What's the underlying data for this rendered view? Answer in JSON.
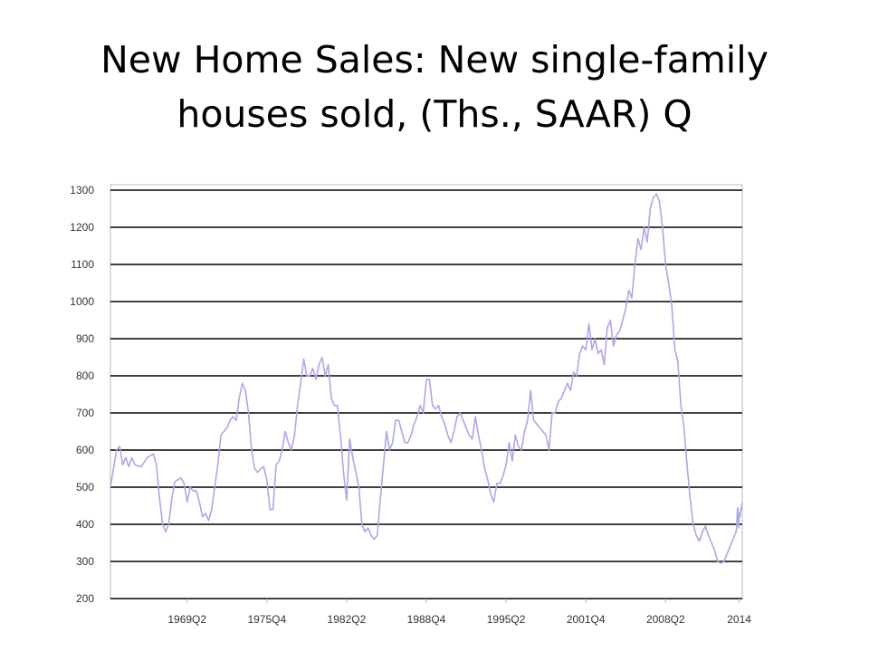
{
  "slide": {
    "title": "New Home Sales: New single-family houses sold, (Ths., SAAR)  Q"
  },
  "colors": {
    "series": "#a9a9e6",
    "grid": "#000000",
    "frame": "#bbbbbb",
    "text": "#333333"
  },
  "chart_data": {
    "type": "line",
    "title": "New Home Sales: New single-family houses sold, (Ths., SAAR)  Q",
    "xlabel": "",
    "ylabel": "",
    "ylim": [
      200,
      1300
    ],
    "xlim": [
      1963.0,
      2014.5
    ],
    "grid": true,
    "legend": "none",
    "yticks": [
      200,
      300,
      400,
      500,
      600,
      700,
      800,
      900,
      1000,
      1100,
      1200,
      1300
    ],
    "xtick_labels": [
      {
        "label": "1969Q2",
        "x": 1969.25
      },
      {
        "label": "1975Q4",
        "x": 1975.75
      },
      {
        "label": "1982Q2",
        "x": 1982.25
      },
      {
        "label": "1988Q4",
        "x": 1988.75
      },
      {
        "label": "1995Q2",
        "x": 1995.25
      },
      {
        "label": "2001Q4",
        "x": 2001.75
      },
      {
        "label": "2008Q2",
        "x": 2008.25
      },
      {
        "label": "2014",
        "x": 2014.25
      }
    ],
    "series": [
      {
        "name": "",
        "points": [
          [
            1963.0,
            500
          ],
          [
            1963.5,
            600
          ],
          [
            1963.75,
            610
          ],
          [
            1964.0,
            560
          ],
          [
            1964.25,
            580
          ],
          [
            1964.5,
            555
          ],
          [
            1964.75,
            580
          ],
          [
            1965.0,
            560
          ],
          [
            1965.5,
            555
          ],
          [
            1966.0,
            580
          ],
          [
            1966.5,
            590
          ],
          [
            1966.75,
            560
          ],
          [
            1967.0,
            470
          ],
          [
            1967.25,
            400
          ],
          [
            1967.5,
            380
          ],
          [
            1967.75,
            400
          ],
          [
            1968.0,
            470
          ],
          [
            1968.25,
            515
          ],
          [
            1968.5,
            520
          ],
          [
            1968.75,
            525
          ],
          [
            1969.0,
            510
          ],
          [
            1969.25,
            460
          ],
          [
            1969.5,
            500
          ],
          [
            1969.75,
            490
          ],
          [
            1970.0,
            490
          ],
          [
            1970.25,
            460
          ],
          [
            1970.5,
            420
          ],
          [
            1970.75,
            430
          ],
          [
            1971.0,
            410
          ],
          [
            1971.25,
            440
          ],
          [
            1971.5,
            500
          ],
          [
            1971.75,
            560
          ],
          [
            1972.0,
            640
          ],
          [
            1972.25,
            650
          ],
          [
            1972.5,
            660
          ],
          [
            1972.75,
            680
          ],
          [
            1973.0,
            690
          ],
          [
            1973.25,
            680
          ],
          [
            1973.5,
            740
          ],
          [
            1973.75,
            780
          ],
          [
            1974.0,
            760
          ],
          [
            1974.25,
            700
          ],
          [
            1974.5,
            600
          ],
          [
            1974.75,
            550
          ],
          [
            1975.0,
            540
          ],
          [
            1975.25,
            550
          ],
          [
            1975.5,
            555
          ],
          [
            1975.75,
            520
          ],
          [
            1976.0,
            440
          ],
          [
            1976.25,
            440
          ],
          [
            1976.5,
            560
          ],
          [
            1976.75,
            570
          ],
          [
            1977.0,
            600
          ],
          [
            1977.25,
            650
          ],
          [
            1977.5,
            620
          ],
          [
            1977.75,
            600
          ],
          [
            1978.0,
            640
          ],
          [
            1978.25,
            720
          ],
          [
            1978.5,
            780
          ],
          [
            1978.75,
            845
          ],
          [
            1979.0,
            800
          ],
          [
            1979.25,
            800
          ],
          [
            1979.5,
            820
          ],
          [
            1979.75,
            790
          ],
          [
            1980.0,
            830
          ],
          [
            1980.25,
            850
          ],
          [
            1980.5,
            800
          ],
          [
            1980.75,
            830
          ],
          [
            1981.0,
            740
          ],
          [
            1981.25,
            720
          ],
          [
            1981.5,
            720
          ],
          [
            1981.75,
            640
          ],
          [
            1982.0,
            540
          ],
          [
            1982.25,
            465
          ],
          [
            1982.5,
            630
          ],
          [
            1982.75,
            580
          ],
          [
            1983.0,
            540
          ],
          [
            1983.25,
            500
          ],
          [
            1983.5,
            400
          ],
          [
            1983.75,
            380
          ],
          [
            1984.0,
            390
          ],
          [
            1984.25,
            370
          ],
          [
            1984.5,
            360
          ],
          [
            1984.75,
            370
          ],
          [
            1985.0,
            470
          ],
          [
            1985.25,
            560
          ],
          [
            1985.5,
            650
          ],
          [
            1985.75,
            600
          ],
          [
            1986.0,
            620
          ],
          [
            1986.25,
            680
          ],
          [
            1986.5,
            680
          ],
          [
            1986.75,
            650
          ],
          [
            1987.0,
            620
          ],
          [
            1987.25,
            620
          ],
          [
            1987.5,
            640
          ],
          [
            1987.75,
            670
          ],
          [
            1988.0,
            690
          ],
          [
            1988.25,
            720
          ],
          [
            1988.5,
            700
          ],
          [
            1988.75,
            790
          ],
          [
            1989.0,
            790
          ],
          [
            1989.25,
            720
          ],
          [
            1989.5,
            710
          ],
          [
            1989.75,
            720
          ],
          [
            1990.0,
            690
          ],
          [
            1990.25,
            670
          ],
          [
            1990.5,
            640
          ],
          [
            1990.75,
            620
          ],
          [
            1991.0,
            650
          ],
          [
            1991.25,
            690
          ],
          [
            1991.5,
            700
          ],
          [
            1991.75,
            680
          ],
          [
            1992.0,
            660
          ],
          [
            1992.25,
            640
          ],
          [
            1992.5,
            630
          ],
          [
            1992.75,
            690
          ],
          [
            1993.0,
            640
          ],
          [
            1993.25,
            600
          ],
          [
            1993.5,
            550
          ],
          [
            1993.75,
            520
          ],
          [
            1994.0,
            480
          ],
          [
            1994.25,
            460
          ],
          [
            1994.5,
            510
          ],
          [
            1994.75,
            510
          ],
          [
            1995.0,
            530
          ],
          [
            1995.25,
            560
          ],
          [
            1995.5,
            620
          ],
          [
            1995.75,
            570
          ],
          [
            1996.0,
            640
          ],
          [
            1996.25,
            610
          ],
          [
            1996.5,
            600
          ],
          [
            1996.75,
            650
          ],
          [
            1997.0,
            680
          ],
          [
            1997.25,
            760
          ],
          [
            1997.5,
            680
          ],
          [
            1997.75,
            670
          ],
          [
            1998.0,
            660
          ],
          [
            1998.25,
            650
          ],
          [
            1998.5,
            640
          ],
          [
            1998.75,
            600
          ],
          [
            1999.0,
            700
          ],
          [
            1999.25,
            700
          ],
          [
            1999.5,
            730
          ],
          [
            1999.75,
            740
          ],
          [
            2000.0,
            760
          ],
          [
            2000.25,
            780
          ],
          [
            2000.5,
            760
          ],
          [
            2000.75,
            810
          ],
          [
            2001.0,
            800
          ],
          [
            2001.25,
            860
          ],
          [
            2001.5,
            880
          ],
          [
            2001.75,
            870
          ],
          [
            2002.0,
            940
          ],
          [
            2002.25,
            870
          ],
          [
            2002.5,
            900
          ],
          [
            2002.75,
            860
          ],
          [
            2003.0,
            870
          ],
          [
            2003.25,
            830
          ],
          [
            2003.5,
            930
          ],
          [
            2003.75,
            950
          ],
          [
            2004.0,
            880
          ],
          [
            2004.25,
            910
          ],
          [
            2004.5,
            920
          ],
          [
            2004.75,
            950
          ],
          [
            2005.0,
            980
          ],
          [
            2005.25,
            1030
          ],
          [
            2005.5,
            1010
          ],
          [
            2005.75,
            1100
          ],
          [
            2006.0,
            1170
          ],
          [
            2006.25,
            1140
          ],
          [
            2006.5,
            1200
          ],
          [
            2006.75,
            1160
          ],
          [
            2007.0,
            1250
          ],
          [
            2007.25,
            1280
          ],
          [
            2007.5,
            1290
          ],
          [
            2007.75,
            1270
          ],
          [
            2008.0,
            1200
          ],
          [
            2008.25,
            1100
          ],
          [
            2008.5,
            1050
          ],
          [
            2008.75,
            990
          ],
          [
            2009.0,
            870
          ],
          [
            2009.25,
            840
          ],
          [
            2009.5,
            720
          ],
          [
            2009.75,
            660
          ],
          [
            2010.0,
            560
          ],
          [
            2010.25,
            470
          ],
          [
            2010.5,
            400
          ],
          [
            2010.75,
            370
          ],
          [
            2011.0,
            355
          ],
          [
            2011.25,
            380
          ],
          [
            2011.5,
            395
          ],
          [
            2011.75,
            370
          ],
          [
            2012.0,
            350
          ],
          [
            2012.25,
            330
          ],
          [
            2012.5,
            300
          ],
          [
            2012.75,
            295
          ],
          [
            2013.0,
            300
          ],
          [
            2013.25,
            320
          ],
          [
            2013.5,
            340
          ],
          [
            2013.75,
            360
          ],
          [
            2014.0,
            380
          ],
          [
            2014.05,
            400
          ],
          [
            2014.1,
            440
          ],
          [
            2014.15,
            445
          ],
          [
            2014.2,
            390
          ],
          [
            2014.25,
            430
          ],
          [
            2014.3,
            420
          ],
          [
            2014.35,
            430
          ],
          [
            2014.4,
            440
          ],
          [
            2014.5,
            460
          ]
        ]
      }
    ]
  }
}
